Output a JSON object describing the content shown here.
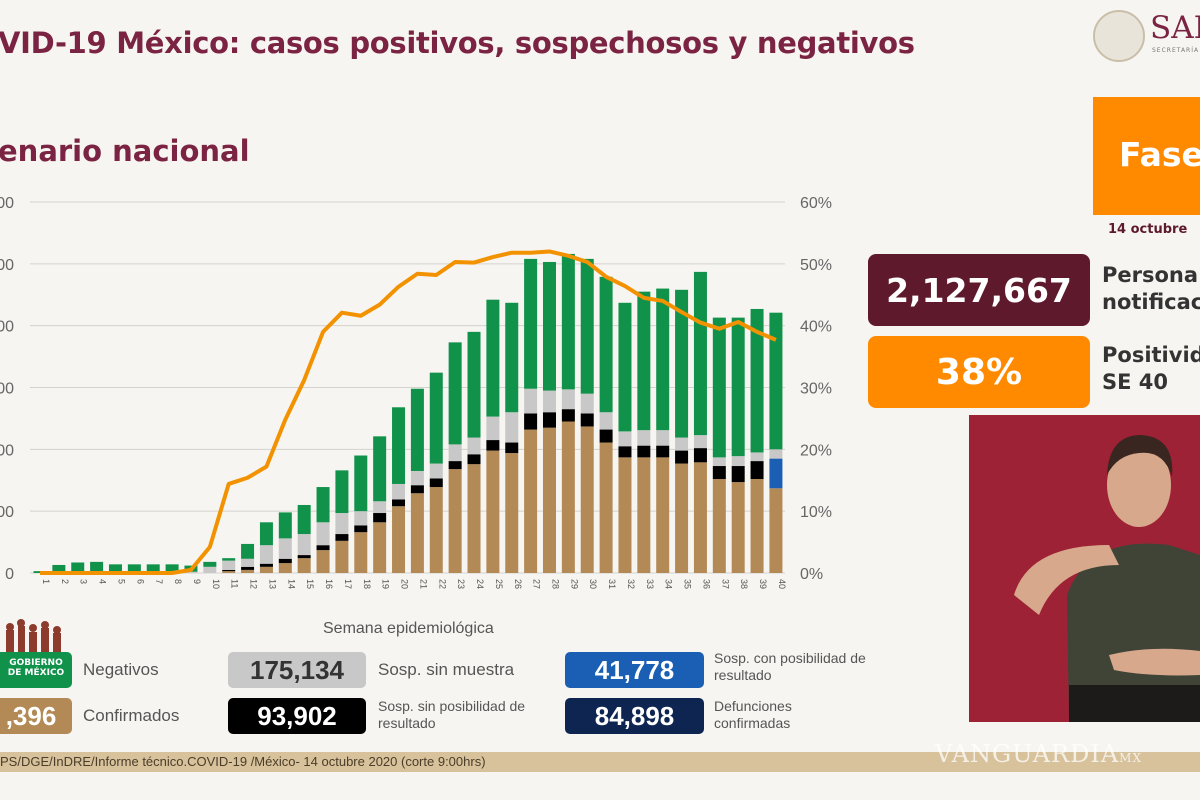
{
  "header": {
    "title": "VID-19 México: casos positivos, sospechosos y negativos",
    "subtitle": "enario nacional",
    "agency_short": "SAL",
    "agency_sub": "SECRETARÍA"
  },
  "phase": {
    "label": "Fase",
    "date": "14 octubre"
  },
  "stats": [
    {
      "value": "2,127,667",
      "label_line1": "Persona",
      "label_line2": "notificac",
      "color": "#5e1a2c"
    },
    {
      "value": "38%",
      "label_line1": "Positivid",
      "label_line2": "SE 40",
      "color": "#ff8a00"
    }
  ],
  "legend": [
    {
      "value": "",
      "label": "Negativos",
      "color": "#10924a"
    },
    {
      "value": "175,134",
      "label": "Sosp. sin muestra",
      "color": "#c8c8c8"
    },
    {
      "value": "41,778",
      "label": "Sosp. con posibilidad de resultado",
      "color": "#1a5fb4"
    },
    {
      "value": ",396",
      "label": "Confirmados",
      "color": "#b38a55"
    },
    {
      "value": "93,902",
      "label": "Sosp. sin posibilidad de resultado",
      "color": "#000000"
    },
    {
      "value": "84,898",
      "label": "Defunciones confirmadas",
      "color": "#0d2550"
    }
  ],
  "logo_text": "GOBIERNO DE MÉXICO",
  "footer": "PS/DGE/InDRE/Informe técnico.COVID-19 /México- 14 octubre 2020 (corte 9:00hrs)",
  "watermark": "VANGUARDIA",
  "watermark_suffix": "MX",
  "chart_data": {
    "type": "bar",
    "stacked": true,
    "xlabel": "Semana epidemiológica",
    "ylabel": "",
    "left_tick_labels": [
      "0",
      "00",
      "00",
      "00",
      "00",
      "00",
      "00"
    ],
    "left_ylim_gridunits": [
      0,
      6
    ],
    "right_tick_labels": [
      "0%",
      "10%",
      "20%",
      "30%",
      "40%",
      "50%",
      "60%"
    ],
    "right_ylim": [
      0,
      60
    ],
    "grid": true,
    "categories": [
      "1",
      "2",
      "3",
      "4",
      "5",
      "6",
      "7",
      "8",
      "9",
      "10",
      "11",
      "12",
      "13",
      "14",
      "15",
      "16",
      "17",
      "18",
      "19",
      "20",
      "21",
      "22",
      "23",
      "24",
      "25",
      "26",
      "27",
      "28",
      "29",
      "30",
      "31",
      "32",
      "33",
      "34",
      "35",
      "36",
      "37",
      "38",
      "39",
      "40"
    ],
    "series": [
      {
        "name": "Confirmados",
        "color": "#b38a55",
        "values": [
          0,
          0,
          0,
          0,
          0,
          0,
          0,
          0,
          0,
          0,
          0.03,
          0.05,
          0.1,
          0.16,
          0.24,
          0.37,
          0.52,
          0.66,
          0.82,
          1.08,
          1.29,
          1.39,
          1.68,
          1.76,
          1.98,
          1.94,
          2.32,
          2.35,
          2.45,
          2.37,
          2.11,
          1.87,
          1.87,
          1.87,
          1.77,
          1.79,
          1.52,
          1.47,
          1.52,
          1.37
        ]
      },
      {
        "name": "Sosp. con posibilidad de resultado",
        "color": "#1a5fb4",
        "values": [
          0,
          0,
          0,
          0,
          0,
          0,
          0,
          0,
          0,
          0,
          0,
          0,
          0,
          0,
          0,
          0,
          0,
          0,
          0,
          0,
          0,
          0,
          0,
          0,
          0,
          0,
          0,
          0,
          0,
          0,
          0,
          0,
          0,
          0,
          0,
          0,
          0,
          0,
          0,
          0.48
        ]
      },
      {
        "name": "Sosp. sin posibilidad de resultado",
        "color": "#000000",
        "values": [
          0,
          0,
          0,
          0,
          0,
          0,
          0,
          0,
          0,
          0,
          0.02,
          0.05,
          0.05,
          0.07,
          0.05,
          0.08,
          0.11,
          0.11,
          0.15,
          0.11,
          0.13,
          0.14,
          0.13,
          0.16,
          0.17,
          0.17,
          0.26,
          0.25,
          0.2,
          0.21,
          0.21,
          0.18,
          0.19,
          0.19,
          0.21,
          0.23,
          0.21,
          0.26,
          0.29,
          0
        ]
      },
      {
        "name": "Sosp. sin muestra",
        "color": "#c8c8c8",
        "values": [
          0,
          0.02,
          0.02,
          0.02,
          0.02,
          0.02,
          0.02,
          0.02,
          0.02,
          0.1,
          0.15,
          0.13,
          0.3,
          0.33,
          0.34,
          0.37,
          0.34,
          0.23,
          0.19,
          0.25,
          0.23,
          0.24,
          0.27,
          0.27,
          0.38,
          0.49,
          0.4,
          0.35,
          0.32,
          0.32,
          0.28,
          0.24,
          0.25,
          0.25,
          0.21,
          0.21,
          0.14,
          0.16,
          0.14,
          0.15
        ]
      },
      {
        "name": "Negativos",
        "color": "#10924a",
        "values": [
          0.03,
          0.11,
          0.15,
          0.16,
          0.12,
          0.12,
          0.12,
          0.12,
          0.1,
          0.08,
          0.04,
          0.24,
          0.37,
          0.42,
          0.47,
          0.57,
          0.69,
          0.9,
          1.05,
          1.24,
          1.33,
          1.47,
          1.65,
          1.71,
          1.89,
          1.77,
          2.1,
          2.08,
          2.19,
          2.18,
          2.19,
          2.08,
          2.24,
          2.29,
          2.39,
          2.64,
          2.26,
          2.24,
          2.32,
          2.21
        ]
      }
    ],
    "line": {
      "name": "Positividad",
      "color": "#f39200",
      "axis": "right",
      "values": [
        0,
        0,
        0,
        0,
        0,
        0,
        0,
        0,
        0.5,
        4.2,
        14.4,
        15.4,
        17.2,
        24.8,
        31.2,
        39.0,
        42.1,
        41.6,
        43.4,
        46.3,
        48.4,
        48.2,
        50.3,
        50.2,
        51.1,
        51.8,
        51.8,
        52.0,
        51.3,
        50.3,
        47.9,
        46.4,
        44.5,
        44.0,
        42.2,
        40.5,
        39.5,
        40.6,
        39.0,
        37.7
      ]
    }
  }
}
